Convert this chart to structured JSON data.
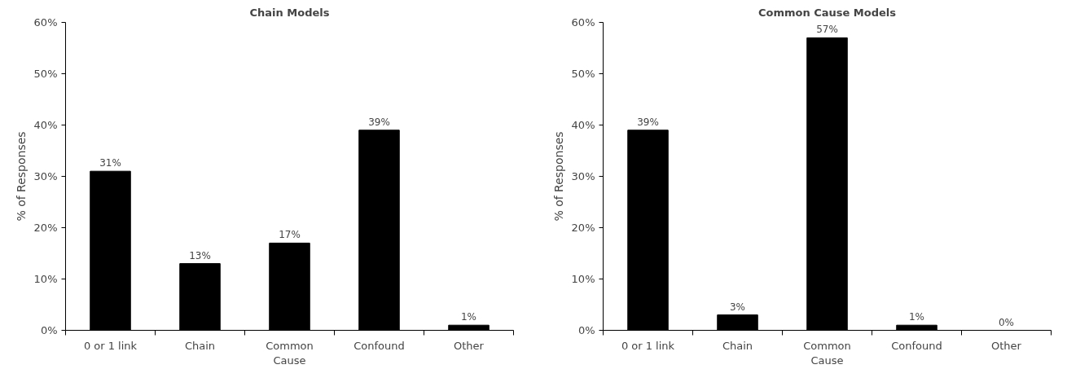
{
  "chart_data": [
    {
      "type": "bar",
      "title": "Chain Models",
      "ylabel": "% of Responses",
      "categories": [
        "0 or 1 link",
        "Chain",
        "Common Cause",
        "Confound",
        "Other"
      ],
      "series": [
        {
          "color": "#000000",
          "values": [
            31,
            13,
            17,
            39,
            1
          ]
        }
      ],
      "value_labels": [
        "31%",
        "13%",
        "17%",
        "39%",
        "1%"
      ],
      "ylim": [
        0,
        60
      ],
      "yticks": [
        {
          "value": 0,
          "label": "0%"
        },
        {
          "value": 10,
          "label": "10%"
        },
        {
          "value": 20,
          "label": "20%"
        },
        {
          "value": 30,
          "label": "30%"
        },
        {
          "value": 40,
          "label": "40%"
        },
        {
          "value": 50,
          "label": "50%"
        },
        {
          "value": 60,
          "label": "60%"
        }
      ],
      "grid": false
    },
    {
      "type": "bar",
      "title": "Common Cause Models",
      "ylabel": "% of Responses",
      "categories": [
        "0 or 1 link",
        "Chain",
        "Common Cause",
        "Confound",
        "Other"
      ],
      "series": [
        {
          "color": "#000000",
          "values": [
            39,
            3,
            57,
            1,
            0
          ]
        }
      ],
      "value_labels": [
        "39%",
        "3%",
        "57%",
        "1%",
        "0%"
      ],
      "ylim": [
        0,
        60
      ],
      "yticks": [
        {
          "value": 0,
          "label": "0%"
        },
        {
          "value": 10,
          "label": "10%"
        },
        {
          "value": 20,
          "label": "20%"
        },
        {
          "value": 30,
          "label": "30%"
        },
        {
          "value": 40,
          "label": "40%"
        },
        {
          "value": 50,
          "label": "50%"
        },
        {
          "value": 60,
          "label": "60%"
        }
      ],
      "grid": false
    }
  ]
}
